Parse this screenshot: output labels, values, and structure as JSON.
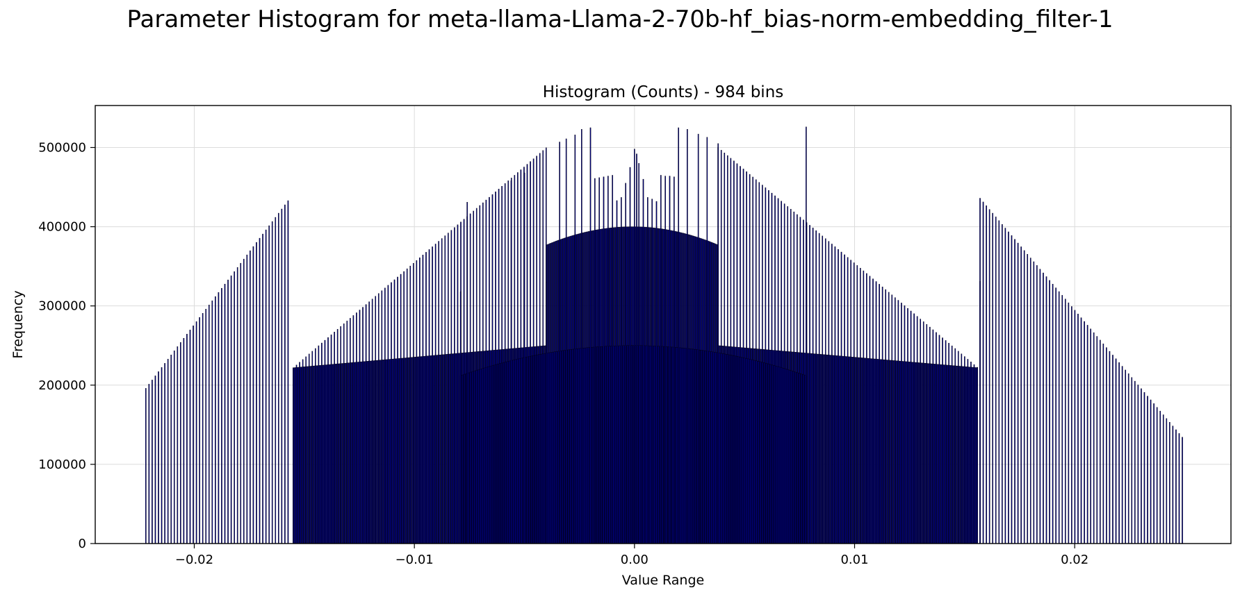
{
  "chart_data": {
    "type": "bar",
    "suptitle": "Parameter Histogram for meta-llama-Llama-2-70b-hf_bias-norm-embedding_filter-1",
    "title": "Histogram (Counts) - 984 bins",
    "xlabel": "Value Range",
    "ylabel": "Frequency",
    "xlim": [
      -0.0245,
      0.0271
    ],
    "ylim": [
      0,
      553000
    ],
    "xticks": [
      -0.02,
      -0.01,
      0.0,
      0.01,
      0.02
    ],
    "xtick_labels": [
      "−0.02",
      "−0.01",
      "0.00",
      "0.01",
      "0.02"
    ],
    "yticks": [
      0,
      100000,
      200000,
      300000,
      400000,
      500000
    ],
    "ytick_labels": [
      "0",
      "100000",
      "200000",
      "300000",
      "400000",
      "500000"
    ],
    "grid": true,
    "legend": "none",
    "bins": 984,
    "bin_range": [
      -0.0222,
      0.0249
    ],
    "bar_color": "#00008b",
    "bar_edge_color": "#000000",
    "series": [
      {
        "segments": [
          {
            "x": [
              -0.0222,
              -0.0156
            ],
            "y": [
              196000,
              438000
            ],
            "style": "sparse"
          },
          {
            "x": [
              -0.0155,
              -0.004
            ],
            "y": [
              222000,
              500000
            ],
            "style": "sparse"
          },
          {
            "x": [
              -0.0155,
              -0.004
            ],
            "y": [
              222000,
              250000
            ],
            "style": "dense"
          },
          {
            "x": [
              -0.004,
              0.0038
            ],
            "y": [
              377000,
              377000
            ],
            "style": "dense-hump",
            "peak_y": 400000
          },
          {
            "x": [
              0.0038,
              0.0156
            ],
            "y": [
              500000,
              222000
            ],
            "style": "sparse"
          },
          {
            "x": [
              0.0038,
              0.0156
            ],
            "y": [
              250000,
              222000
            ],
            "style": "dense"
          },
          {
            "x": [
              -0.0079,
              0.0078
            ],
            "y": [
              212000,
              212000
            ],
            "style": "dense-hump",
            "peak_y": 250000
          },
          {
            "x": [
              0.0157,
              0.0249
            ],
            "y": [
              436000,
              134000
            ],
            "style": "sparse"
          }
        ],
        "center_peak": [
          [
            -0.0008,
            433000
          ],
          [
            -0.0006,
            437000
          ],
          [
            -0.0004,
            455000
          ],
          [
            -0.0002,
            475000
          ],
          [
            0.0,
            498000
          ],
          [
            0.0001,
            492000
          ],
          [
            0.0002,
            480000
          ],
          [
            0.0004,
            460000
          ],
          [
            0.0006,
            437000
          ],
          [
            0.0008,
            435000
          ],
          [
            0.001,
            432000
          ]
        ],
        "spikes": [
          [
            -0.0079,
            318000
          ],
          [
            -0.0076,
            431000
          ],
          [
            -0.0056,
            458000
          ],
          [
            -0.005,
            468000
          ],
          [
            -0.004,
            330000
          ],
          [
            -0.0034,
            507000
          ],
          [
            -0.0031,
            511000
          ],
          [
            -0.0027,
            516000
          ],
          [
            -0.0024,
            523000
          ],
          [
            -0.002,
            525000
          ],
          [
            -0.0018,
            461000
          ],
          [
            -0.0016,
            462000
          ],
          [
            -0.0014,
            463000
          ],
          [
            -0.0012,
            464000
          ],
          [
            -0.001,
            465000
          ],
          [
            0.0012,
            465000
          ],
          [
            0.0014,
            464000
          ],
          [
            0.0016,
            464000
          ],
          [
            0.0018,
            463000
          ],
          [
            0.002,
            525000
          ],
          [
            0.0024,
            523000
          ],
          [
            0.0029,
            517000
          ],
          [
            0.0033,
            513000
          ],
          [
            0.0038,
            505000
          ],
          [
            0.0078,
            526000
          ],
          [
            0.0157,
            331000
          ]
        ]
      }
    ]
  }
}
